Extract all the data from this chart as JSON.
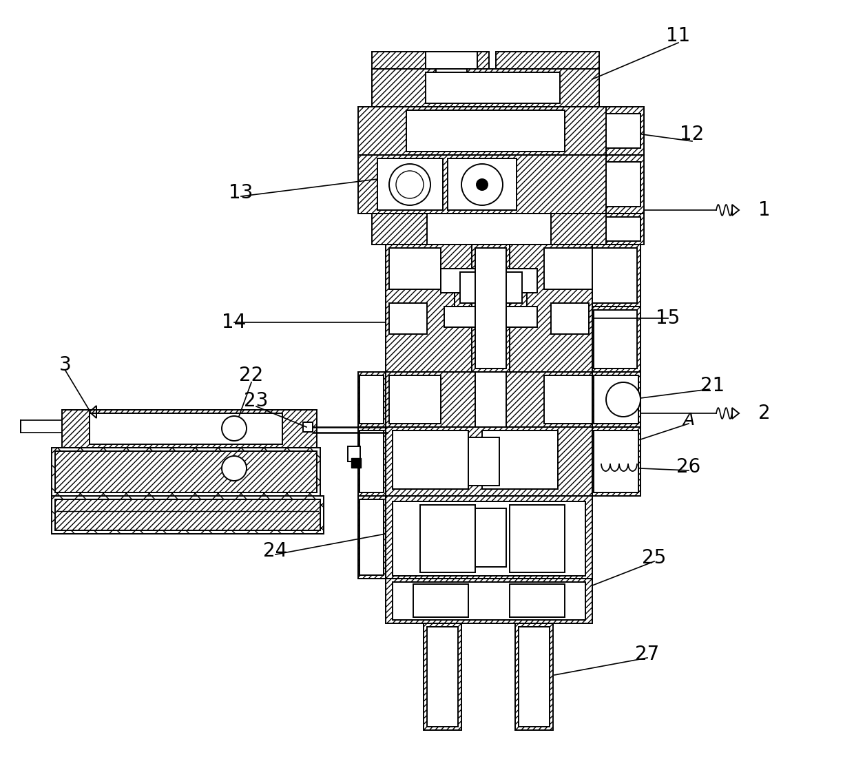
{
  "bg_color": "#ffffff",
  "line_color": "#000000",
  "label_fontsize": 20,
  "figsize": [
    12.4,
    11.15
  ],
  "dpi": 100
}
